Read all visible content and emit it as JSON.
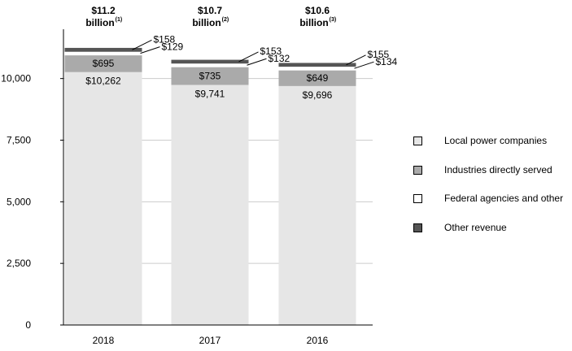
{
  "chart_data": {
    "type": "bar",
    "stacked": true,
    "categories": [
      "2018",
      "2017",
      "2016"
    ],
    "series": [
      {
        "name": "Local power companies",
        "values": [
          10262,
          9741,
          9696
        ],
        "labels": [
          "$10,262",
          "$9,741",
          "$9,696"
        ],
        "color": "#e6e6e6"
      },
      {
        "name": "Industries directly served",
        "values": [
          695,
          735,
          649
        ],
        "labels": [
          "$695",
          "$735",
          "$649"
        ],
        "color": "#aaaaaa"
      },
      {
        "name": "Federal agencies and other",
        "values": [
          129,
          132,
          134
        ],
        "labels": [
          "$129",
          "$132",
          "$134"
        ],
        "color": "#ffffff"
      },
      {
        "name": "Other revenue",
        "values": [
          158,
          153,
          155
        ],
        "labels": [
          "$158",
          "$153",
          "$155"
        ],
        "color": "#555555"
      }
    ],
    "totals": [
      {
        "amount": "$11.2",
        "unit": "billion",
        "note": "(1)"
      },
      {
        "amount": "$10.7",
        "unit": "billion",
        "note": "(2)"
      },
      {
        "amount": "$10.6",
        "unit": "billion",
        "note": "(3)"
      }
    ],
    "yticks": [
      0,
      2500,
      5000,
      7500,
      10000
    ],
    "ytick_labels": [
      "0",
      "2,500",
      "5,000",
      "7,500",
      "10,000"
    ],
    "ylim": [
      0,
      12000
    ],
    "grid": true,
    "legend_position": "right"
  }
}
